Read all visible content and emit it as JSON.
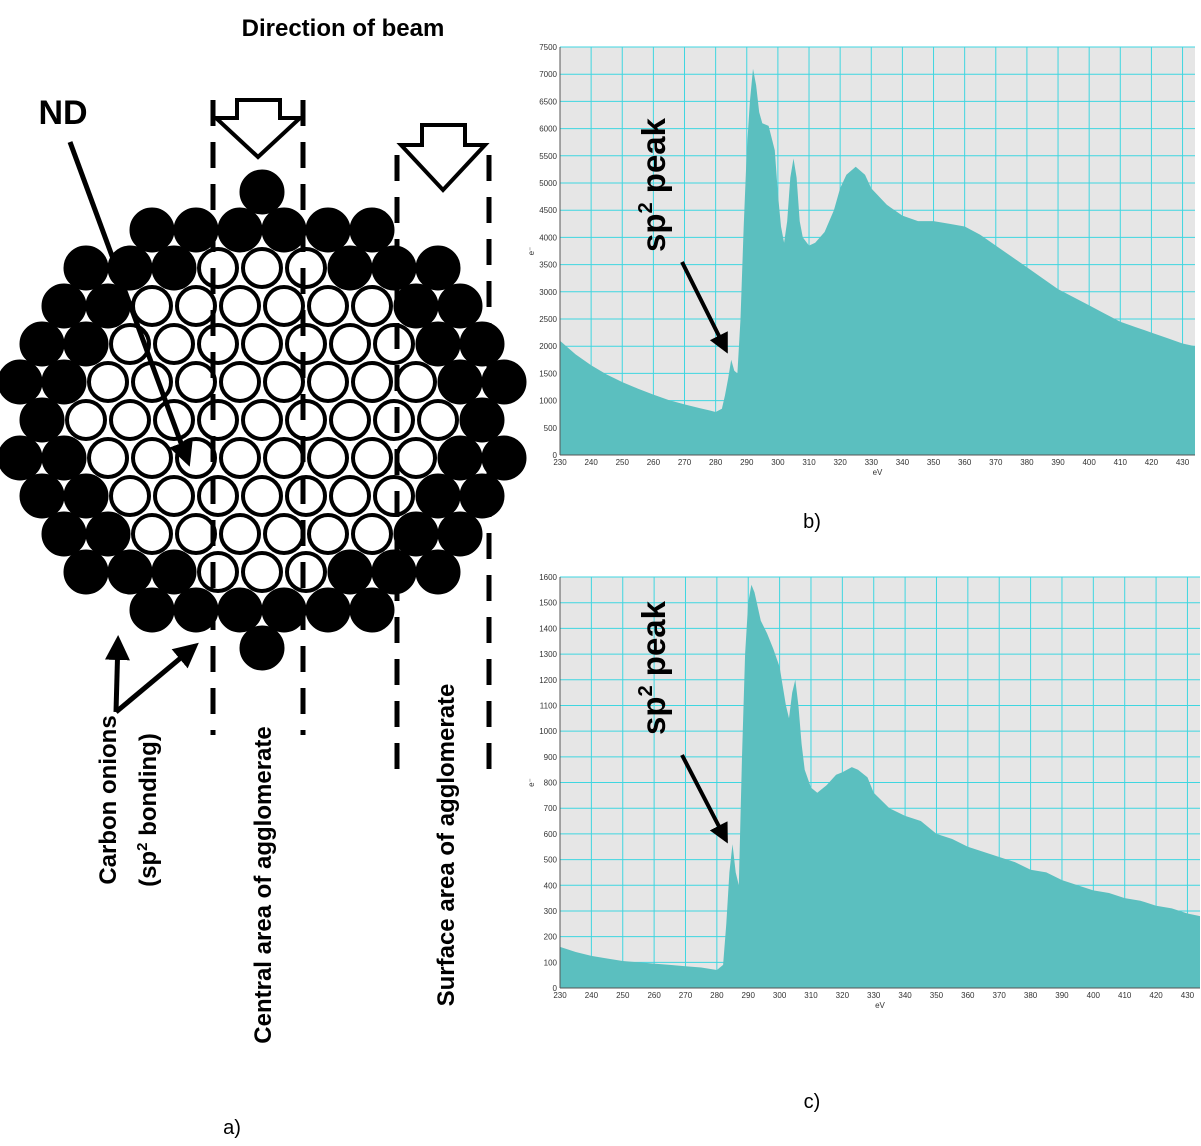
{
  "diagram": {
    "title": "Direction of beam",
    "nd_label": "ND",
    "onion_label": {
      "line1": "Carbon onions",
      "line2": [
        "(sp",
        "2",
        " bonding)"
      ]
    },
    "central_label": "Central area of agglomerate",
    "surface_label": "Surface area of agglomerate",
    "caption": "a)"
  },
  "chart_data": [
    {
      "type": "area",
      "caption": "b)",
      "xlabel": "eV",
      "ylabel": "e⁻",
      "annotation": [
        "sp",
        "2",
        " peak"
      ],
      "color": "#5bbfbf",
      "grid": true,
      "grid_color": "#3fd6e0",
      "xlim": [
        230,
        434
      ],
      "ylim": [
        0,
        7500
      ],
      "xticks": [
        230,
        240,
        250,
        260,
        270,
        280,
        290,
        300,
        310,
        320,
        330,
        340,
        350,
        360,
        370,
        380,
        390,
        400,
        410,
        420,
        430
      ],
      "yticks": [
        0,
        500,
        1000,
        1500,
        2000,
        2500,
        3000,
        3500,
        4000,
        4500,
        5000,
        5500,
        6000,
        6500,
        7000,
        7500
      ],
      "x": [
        230,
        235,
        240,
        245,
        250,
        255,
        260,
        265,
        270,
        275,
        278,
        280,
        282,
        283,
        284,
        285,
        286,
        287,
        288,
        289,
        290,
        291,
        292,
        293,
        294,
        295,
        297,
        299,
        300,
        301,
        302,
        303,
        304,
        305,
        306,
        307,
        308,
        310,
        312,
        315,
        318,
        320,
        322,
        325,
        328,
        330,
        335,
        340,
        345,
        350,
        355,
        360,
        365,
        370,
        375,
        380,
        385,
        390,
        395,
        400,
        405,
        410,
        415,
        420,
        425,
        430,
        434
      ],
      "values": [
        2100,
        1850,
        1650,
        1480,
        1340,
        1220,
        1110,
        1010,
        930,
        860,
        820,
        790,
        850,
        1100,
        1400,
        1750,
        1550,
        1500,
        2500,
        4200,
        5600,
        6500,
        7100,
        6800,
        6300,
        6100,
        6050,
        5600,
        4800,
        4200,
        3900,
        4300,
        5100,
        5450,
        5100,
        4300,
        4000,
        3850,
        3900,
        4100,
        4500,
        4900,
        5150,
        5300,
        5150,
        4900,
        4600,
        4400,
        4300,
        4300,
        4250,
        4200,
        4050,
        3850,
        3650,
        3450,
        3250,
        3050,
        2900,
        2750,
        2600,
        2450,
        2350,
        2250,
        2150,
        2050,
        2000
      ]
    },
    {
      "type": "area",
      "caption": "c)",
      "xlabel": "eV",
      "ylabel": "e⁻",
      "annotation": [
        "sp",
        "2",
        " peak"
      ],
      "color": "#5bbfbf",
      "grid": true,
      "grid_color": "#3fd6e0",
      "xlim": [
        230,
        434
      ],
      "ylim": [
        0,
        1600
      ],
      "xticks": [
        230,
        240,
        250,
        260,
        270,
        280,
        290,
        300,
        310,
        320,
        330,
        340,
        350,
        360,
        370,
        380,
        390,
        400,
        410,
        420,
        430
      ],
      "yticks": [
        0,
        100,
        200,
        300,
        400,
        500,
        600,
        700,
        800,
        900,
        1000,
        1100,
        1200,
        1300,
        1400,
        1500,
        1600
      ],
      "x": [
        230,
        235,
        240,
        245,
        250,
        255,
        260,
        265,
        270,
        275,
        280,
        282,
        283,
        284,
        285,
        286,
        287,
        288,
        289,
        290,
        291,
        292,
        294,
        296,
        298,
        300,
        302,
        303,
        304,
        305,
        306,
        307,
        308,
        310,
        312,
        315,
        318,
        320,
        323,
        325,
        328,
        330,
        335,
        340,
        345,
        350,
        355,
        360,
        365,
        370,
        375,
        380,
        385,
        390,
        395,
        400,
        405,
        410,
        415,
        420,
        425,
        430,
        434
      ],
      "values": [
        160,
        140,
        125,
        115,
        105,
        100,
        95,
        90,
        85,
        80,
        70,
        90,
        250,
        450,
        560,
        450,
        400,
        900,
        1300,
        1500,
        1570,
        1540,
        1430,
        1380,
        1320,
        1250,
        1100,
        1050,
        1150,
        1200,
        1100,
        950,
        850,
        780,
        760,
        790,
        830,
        840,
        860,
        850,
        820,
        760,
        700,
        670,
        650,
        600,
        580,
        550,
        530,
        510,
        490,
        460,
        450,
        420,
        400,
        380,
        370,
        350,
        340,
        320,
        310,
        290,
        280
      ]
    }
  ]
}
